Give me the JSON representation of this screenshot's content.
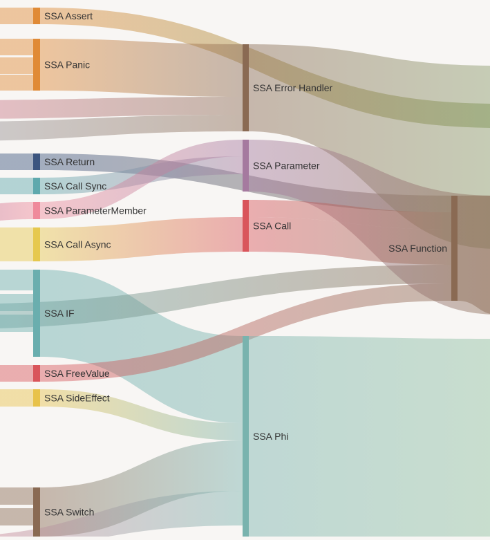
{
  "chart_data": {
    "type": "sankey",
    "title": "",
    "nodes": [
      {
        "id": "ssa_assert",
        "label": "SSA Assert",
        "color": "#e08a36"
      },
      {
        "id": "ssa_panic",
        "label": "SSA Panic",
        "color": "#e08a36"
      },
      {
        "id": "ssa_return",
        "label": "SSA Return",
        "color": "#3c557f"
      },
      {
        "id": "ssa_call_sync",
        "label": "SSA Call Sync",
        "color": "#5fa9ad"
      },
      {
        "id": "ssa_parammember",
        "label": "SSA ParameterMember",
        "color": "#ef8a9b"
      },
      {
        "id": "ssa_call_async",
        "label": "SSA Call Async",
        "color": "#e6c84e"
      },
      {
        "id": "ssa_if",
        "label": "SSA IF",
        "color": "#6aaeae"
      },
      {
        "id": "ssa_freevalue",
        "label": "SSA FreeValue",
        "color": "#d9555b"
      },
      {
        "id": "ssa_sideeffect",
        "label": "SSA SideEffect",
        "color": "#e8c24a"
      },
      {
        "id": "ssa_switch",
        "label": "SSA Switch",
        "color": "#8a6a53"
      },
      {
        "id": "ssa_error_handler",
        "label": "SSA Error Handler",
        "color": "#8a6a53"
      },
      {
        "id": "ssa_parameter",
        "label": "SSA Parameter",
        "color": "#a57a9f"
      },
      {
        "id": "ssa_call",
        "label": "SSA Call",
        "color": "#d9555b"
      },
      {
        "id": "ssa_phi",
        "label": "SSA Phi",
        "color": "#79b3ae"
      },
      {
        "id": "ssa_function",
        "label": "SSA Function",
        "color": "#8a6a53"
      }
    ]
  }
}
